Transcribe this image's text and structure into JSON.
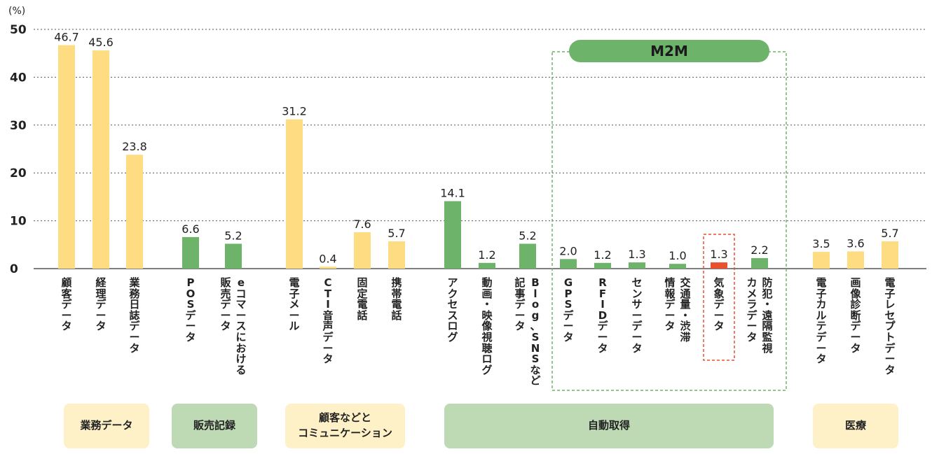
{
  "chart_data": {
    "type": "bar",
    "unit": "(%)",
    "ylim": [
      0,
      50
    ],
    "yticks": [
      0,
      10,
      20,
      30,
      40,
      50
    ],
    "grid": true,
    "categories": [
      [
        "顧客データ"
      ],
      [
        "経理データ"
      ],
      [
        "業務日誌データ"
      ],
      [
        "POSデータ"
      ],
      [
        "販売データ",
        "eコマースにおける"
      ],
      [
        "電子メール"
      ],
      [
        "CTI音声データ"
      ],
      [
        "固定電話"
      ],
      [
        "携帯電話"
      ],
      [
        "アクセスログ"
      ],
      [
        "動画・映像視聴ログ"
      ],
      [
        "記事データ",
        "Blog、SNSなど"
      ],
      [
        "GPSデータ"
      ],
      [
        "RFIDデータ"
      ],
      [
        "センサーデータ"
      ],
      [
        "情報データ",
        "交通量・渋滞"
      ],
      [
        "気象データ"
      ],
      [
        "カメラデータ",
        "防犯・遠隔監視"
      ],
      [
        "電子カルテデータ"
      ],
      [
        "画像診断データ"
      ],
      [
        "電子レセプトデータ"
      ]
    ],
    "values": [
      46.7,
      45.6,
      23.8,
      6.6,
      5.2,
      31.2,
      0.4,
      7.6,
      5.7,
      14.1,
      1.2,
      5.2,
      2.0,
      1.2,
      1.3,
      1.0,
      1.3,
      2.2,
      3.5,
      3.6,
      5.7
    ],
    "value_labels": [
      "46.7",
      "45.6",
      "23.8",
      "6.6",
      "5.2",
      "31.2",
      "0.4",
      "7.6",
      "5.7",
      "14.1",
      "1.2",
      "5.2",
      "2.0",
      "1.2",
      "1.3",
      "1.0",
      "1.3",
      "2.2",
      "3.5",
      "3.6",
      "5.7"
    ],
    "bar_colors": [
      "#FDDC82",
      "#FDDC82",
      "#FDDC82",
      "#6DB36A",
      "#6DB36A",
      "#FDDC82",
      "#FDDC82",
      "#FDDC82",
      "#FDDC82",
      "#6DB36A",
      "#6DB36A",
      "#6DB36A",
      "#6DB36A",
      "#6DB36A",
      "#6DB36A",
      "#6DB36A",
      "#E8502E",
      "#6DB36A",
      "#FDDC82",
      "#FDDC82",
      "#FDDC82"
    ],
    "highlight_label": "M2M",
    "highlighted_category": "気象データ",
    "groups": [
      {
        "lines": [
          "業務データ"
        ],
        "color": "#FFF1C7"
      },
      {
        "lines": [
          "販売記録"
        ],
        "color": "#BDDAB5"
      },
      {
        "lines": [
          "顧客などと",
          "コミュニケーション"
        ],
        "color": "#FFF1C7"
      },
      {
        "lines": [
          "自動取得"
        ],
        "color": "#BDDAB5"
      },
      {
        "lines": [
          "医療"
        ],
        "color": "#FFF1C7"
      }
    ]
  }
}
